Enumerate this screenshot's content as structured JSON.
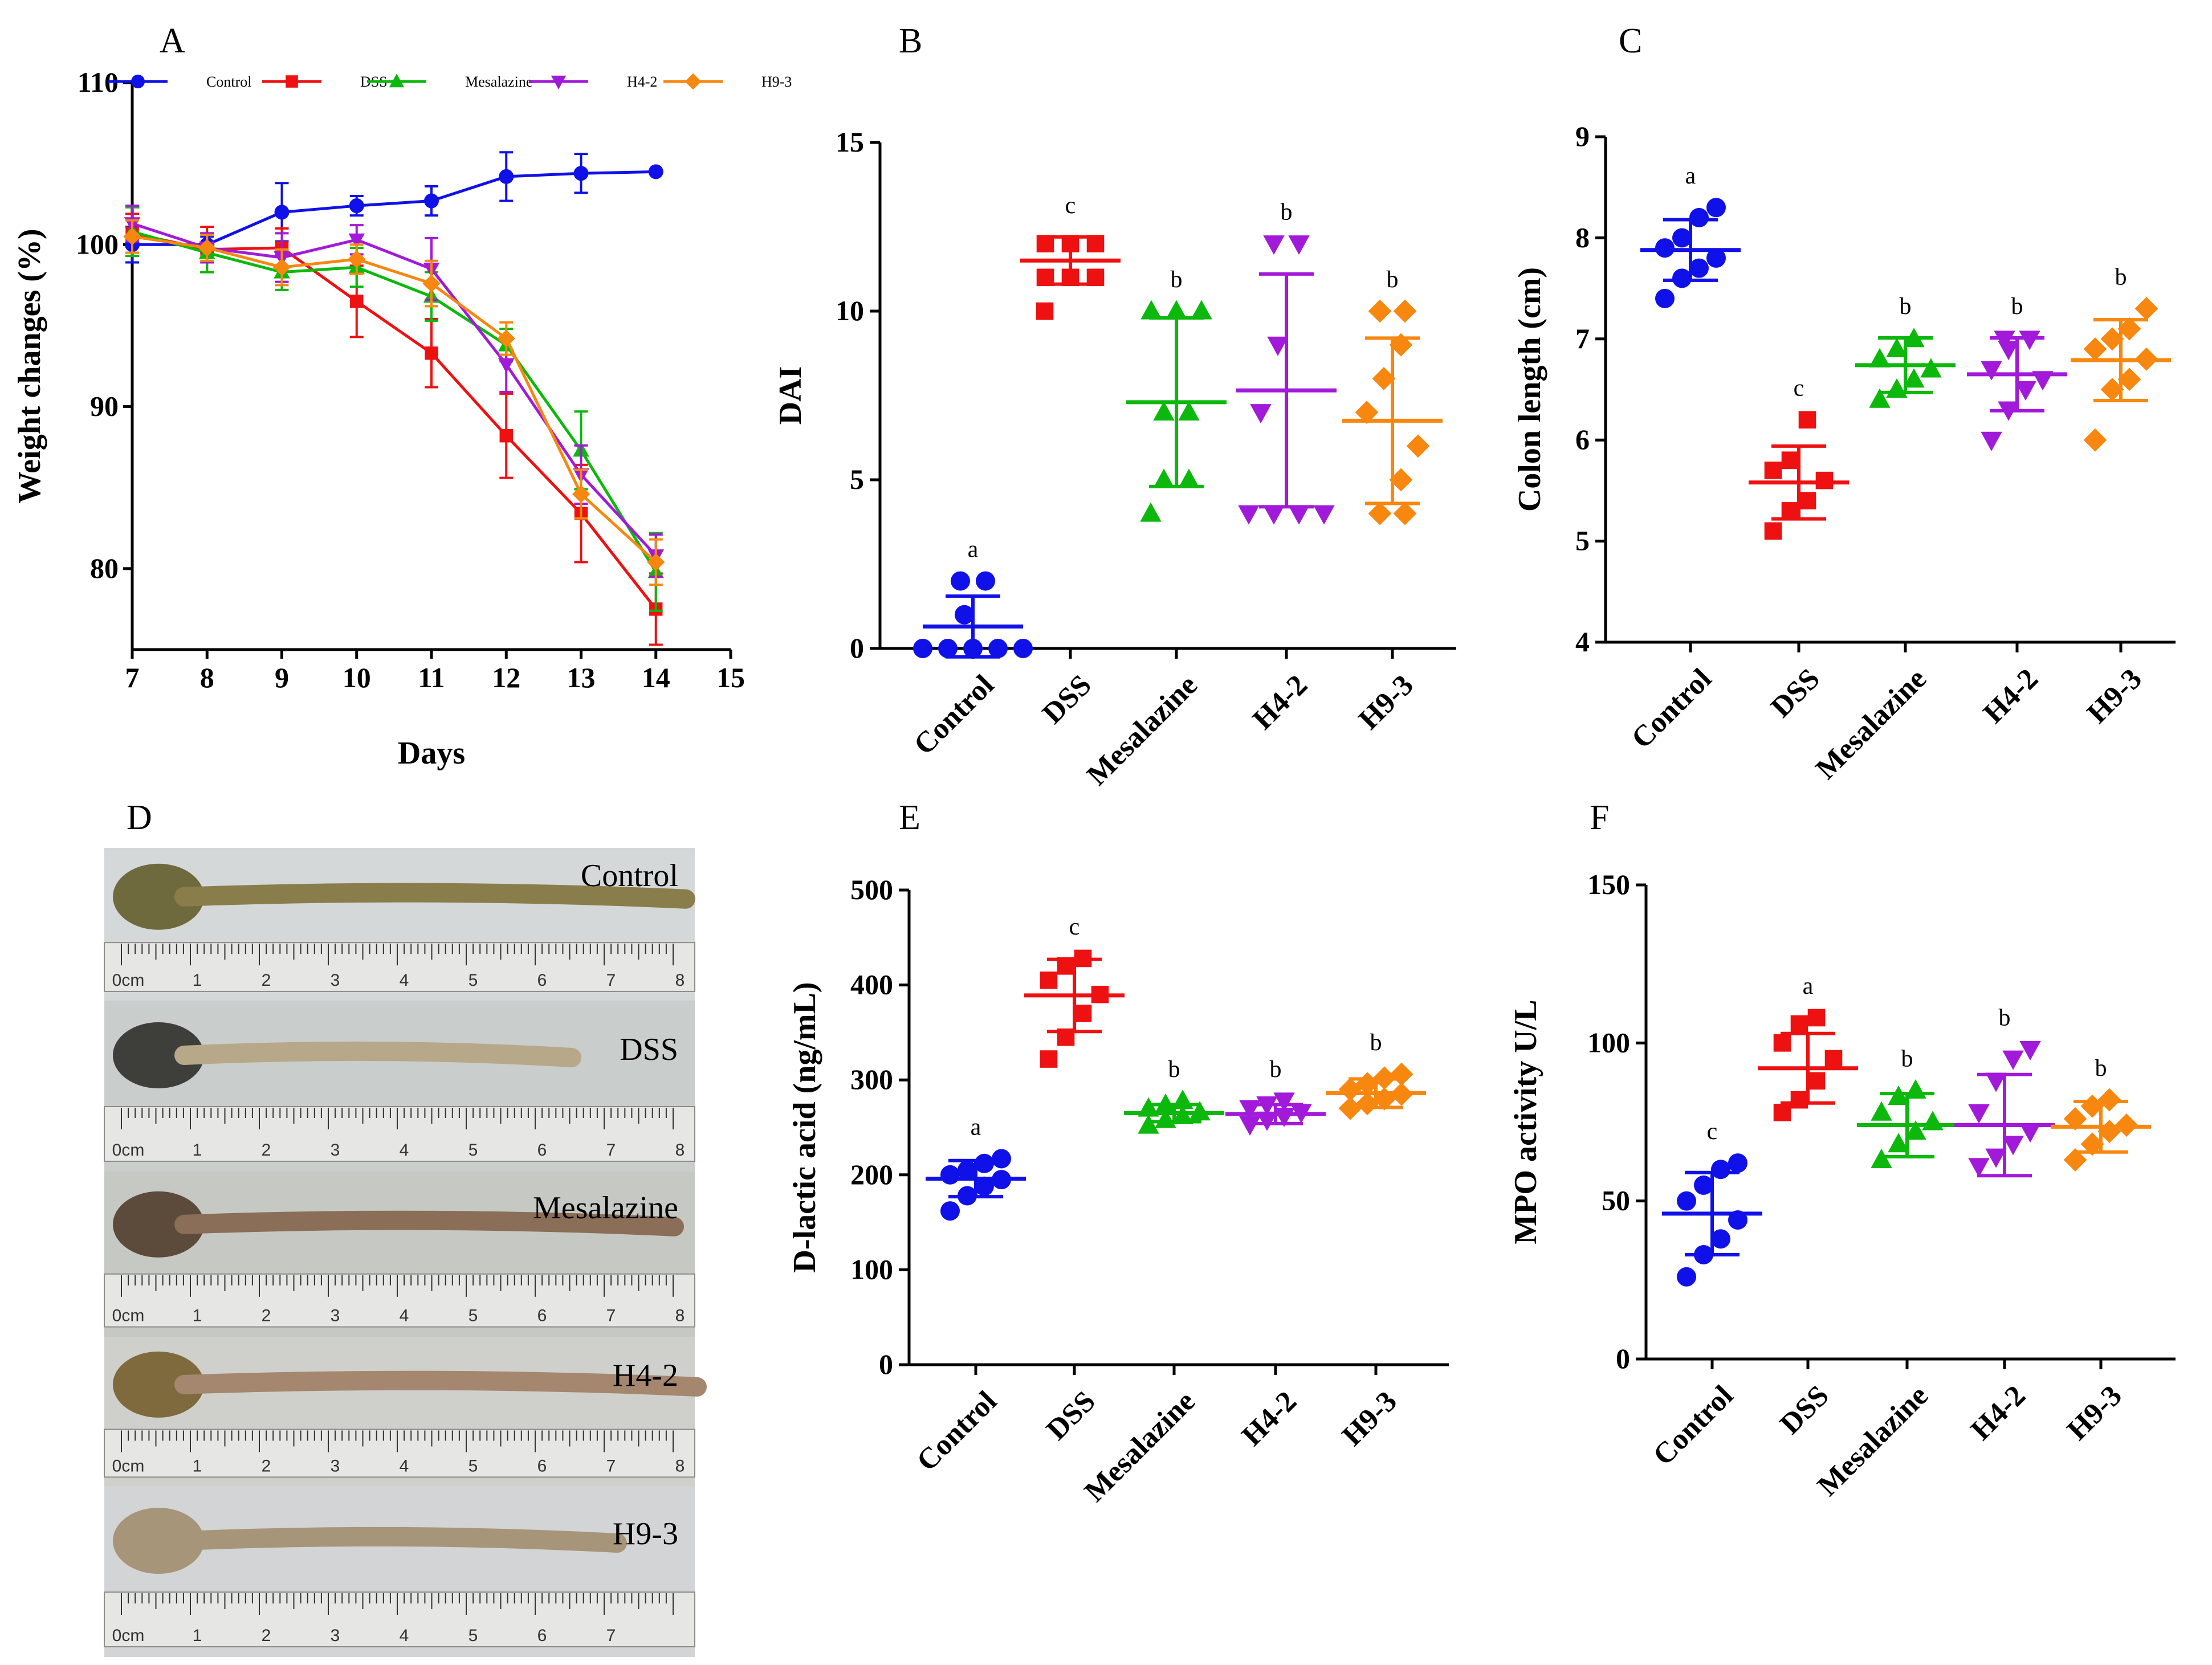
{
  "figure": {
    "photo_panel": {
      "letter": "D",
      "labels": [
        "Control",
        "DSS",
        "Mesalazine",
        "H4-2",
        "H9-3"
      ],
      "ruler_marks": [
        [
          "0cm",
          "1",
          "2",
          "3",
          "4",
          "5",
          "6",
          "7",
          "8"
        ],
        [
          "0cm",
          "1",
          "2",
          "3",
          "4",
          "5",
          "6",
          "7",
          "8"
        ],
        [
          "0cm",
          "1",
          "2",
          "3",
          "4",
          "5",
          "6",
          "7",
          "8"
        ],
        [
          "0cm",
          "1",
          "2",
          "3",
          "4",
          "5",
          "6",
          "7",
          "8"
        ],
        [
          "0cm",
          "1",
          "2",
          "3",
          "4",
          "5",
          "6",
          "7"
        ]
      ]
    }
  },
  "colors": {
    "Control": "#1010e8",
    "DSS": "#ee1111",
    "Mesalazine": "#0cb80c",
    "H4-2": "#a21ad9",
    "H9-3": "#f7870e"
  },
  "chart_data": [
    {
      "panel": "A",
      "type": "line",
      "xlabel": "Days",
      "ylabel": "Weight changes (%)",
      "xlim": [
        7,
        15
      ],
      "ylim": [
        75,
        110
      ],
      "xticks": [
        7,
        8,
        9,
        10,
        11,
        12,
        13,
        14,
        15
      ],
      "yticks": [
        80,
        90,
        100,
        110
      ],
      "legend_position": "top",
      "x": [
        7,
        8,
        9,
        10,
        11,
        12,
        13,
        14
      ],
      "series": [
        {
          "name": "Control",
          "marker": "circle",
          "values": [
            100,
            100,
            102,
            102.4,
            102.7,
            104.2,
            104.4,
            104.5
          ],
          "errors": [
            1.1,
            0.5,
            1.8,
            0.6,
            0.9,
            1.5,
            1.2,
            0
          ]
        },
        {
          "name": "DSS",
          "marker": "square",
          "values": [
            100.7,
            99.7,
            99.8,
            96.5,
            93.3,
            88.2,
            83.4,
            77.5
          ],
          "errors": [
            1.2,
            1.4,
            1.2,
            2.2,
            2.1,
            2.6,
            3.0,
            2.2
          ]
        },
        {
          "name": "Mesalazine",
          "marker": "triangle-up",
          "values": [
            100.8,
            99.5,
            98.3,
            98.6,
            96.8,
            93.8,
            87.3,
            79.8
          ],
          "errors": [
            1.5,
            1.2,
            1.1,
            1.2,
            1.5,
            1.0,
            2.4,
            2.4
          ]
        },
        {
          "name": "H4-2",
          "marker": "triangle-down",
          "values": [
            101.3,
            99.8,
            99.2,
            100.3,
            98.5,
            92.6,
            85.8,
            80.8
          ],
          "errors": [
            1.1,
            0.9,
            1.5,
            0.9,
            1.9,
            1.7,
            1.8,
            1.3
          ]
        },
        {
          "name": "H9-3",
          "marker": "diamond",
          "values": [
            100.5,
            99.8,
            98.6,
            99.1,
            97.6,
            94.2,
            84.6,
            80.4
          ],
          "errors": [
            1.0,
            0.8,
            1.1,
            0.9,
            1.4,
            1.0,
            1.5,
            1.4
          ]
        }
      ]
    },
    {
      "panel": "B",
      "type": "scatter",
      "ylabel": "DAI",
      "ylim": [
        0,
        15
      ],
      "yticks": [
        0,
        5,
        10,
        15
      ],
      "categories": [
        "Control",
        "DSS",
        "Mesalazine",
        "H4-2",
        "H9-3"
      ],
      "markers": [
        "circle",
        "square",
        "triangle-up",
        "triangle-down",
        "diamond"
      ],
      "means": [
        0.65,
        11.5,
        7.3,
        7.65,
        6.75
      ],
      "sd": [
        0.9,
        0.7,
        2.5,
        3.45,
        2.45
      ],
      "letters": [
        "a",
        "c",
        "b",
        "b",
        "b"
      ],
      "points": [
        [
          0,
          0,
          0,
          0,
          0,
          1,
          2,
          2
        ],
        [
          10,
          11,
          11,
          11,
          12,
          12,
          12
        ],
        [
          4,
          5,
          5,
          7,
          7,
          10,
          10,
          10
        ],
        [
          4,
          4,
          4,
          4,
          7,
          9,
          12,
          12
        ],
        [
          4,
          4,
          5,
          6,
          7,
          8,
          9,
          10,
          10
        ]
      ]
    },
    {
      "panel": "C",
      "type": "scatter",
      "ylabel": "Colon length (cm)",
      "ylim": [
        4,
        9
      ],
      "yticks": [
        4,
        5,
        6,
        7,
        8,
        9
      ],
      "categories": [
        "Control",
        "DSS",
        "Mesalazine",
        "H4-2",
        "H9-3"
      ],
      "markers": [
        "circle",
        "square",
        "triangle-up",
        "triangle-down",
        "diamond"
      ],
      "means": [
        7.88,
        5.58,
        6.74,
        6.65,
        6.79
      ],
      "sd": [
        0.3,
        0.36,
        0.27,
        0.36,
        0.4
      ],
      "letters": [
        "a",
        "c",
        "b",
        "b",
        "b"
      ],
      "points": [
        [
          7.4,
          7.6,
          7.7,
          7.8,
          7.9,
          8.0,
          8.2,
          8.3
        ],
        [
          5.1,
          5.3,
          5.4,
          5.6,
          5.7,
          5.8,
          6.2
        ],
        [
          6.4,
          6.5,
          6.6,
          6.7,
          6.8,
          6.9,
          7.0
        ],
        [
          6.0,
          6.3,
          6.5,
          6.6,
          6.7,
          6.9,
          7.0,
          7.0
        ],
        [
          6.0,
          6.5,
          6.6,
          6.8,
          6.9,
          7.0,
          7.1,
          7.3
        ]
      ]
    },
    {
      "panel": "E",
      "type": "scatter",
      "ylabel": "D-lactic acid (ng/mL)",
      "ylim": [
        0,
        500
      ],
      "yticks": [
        0,
        100,
        200,
        300,
        400,
        500
      ],
      "categories": [
        "Control",
        "DSS",
        "Mesalazine",
        "H4-2",
        "H9-3"
      ],
      "markers": [
        "circle",
        "square",
        "triangle-up",
        "triangle-down",
        "diamond"
      ],
      "means": [
        196,
        389,
        265,
        264,
        286
      ],
      "sd": [
        19,
        38,
        9,
        10,
        15
      ],
      "letters": [
        "a",
        "c",
        "b",
        "b",
        "b"
      ],
      "points": [
        [
          162,
          178,
          188,
          195,
          200,
          205,
          212,
          217
        ],
        [
          322,
          345,
          370,
          390,
          405,
          420,
          428
        ],
        [
          252,
          258,
          262,
          266,
          270,
          274,
          278
        ],
        [
          253,
          258,
          262,
          266,
          270,
          274,
          278
        ],
        [
          270,
          275,
          280,
          285,
          290,
          296,
          302,
          306
        ]
      ]
    },
    {
      "panel": "F",
      "type": "scatter",
      "ylabel": "MPO activity U/L",
      "ylim": [
        0,
        150
      ],
      "yticks": [
        0,
        50,
        100,
        150
      ],
      "categories": [
        "Control",
        "DSS",
        "Mesalazine",
        "H4-2",
        "H9-3"
      ],
      "markers": [
        "circle",
        "square",
        "triangle-up",
        "triangle-down",
        "diamond"
      ],
      "means": [
        46,
        92,
        74,
        74,
        73.5
      ],
      "sd": [
        13,
        11,
        10,
        16,
        8
      ],
      "letters": [
        "c",
        "a",
        "b",
        "b",
        "b"
      ],
      "points": [
        [
          26,
          33,
          38,
          44,
          50,
          55,
          60,
          62
        ],
        [
          78,
          82,
          88,
          95,
          100,
          106,
          108
        ],
        [
          63,
          68,
          72,
          75,
          78,
          83,
          85
        ],
        [
          61,
          64,
          68,
          72,
          78,
          88,
          95,
          98
        ],
        [
          63,
          68,
          72,
          74,
          76,
          80,
          82
        ]
      ]
    }
  ]
}
